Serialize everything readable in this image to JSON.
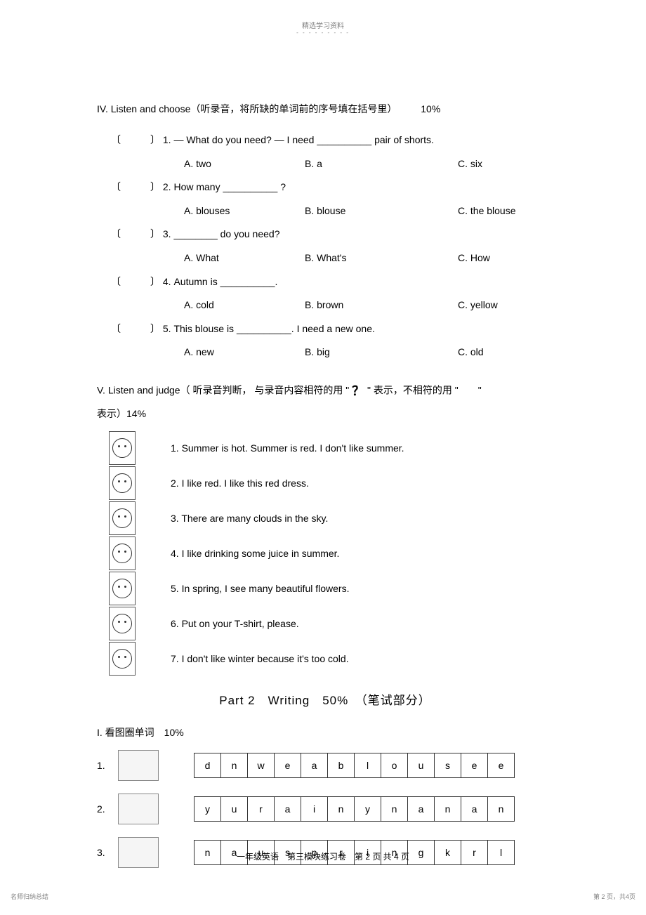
{
  "header": {
    "top_label": "精选学习资料",
    "top_dots": "- - - - - - - - -"
  },
  "section_iv": {
    "title_prefix": "IV. Listen and choose（听录音，将所缺的单词前的序号填在括号里）",
    "percent": "10%",
    "questions": [
      {
        "bracket": "〔　　　〕",
        "text": "1. — What do you need? —   I need __________ pair of shorts.",
        "a": "A. two",
        "b": "B. a",
        "c": "C. six"
      },
      {
        "bracket": "〔　　　〕",
        "text": "2. How many __________ ?",
        "a": "A. blouses",
        "b": "B. blouse",
        "c": "C. the blouse"
      },
      {
        "bracket": "〔　　　〕",
        "text": "3. ________ do you need?",
        "a": "A. What",
        "b": "B. What's",
        "c": "C. How"
      },
      {
        "bracket": "〔　　　〕",
        "text": "4. Autumn is __________.",
        "a": "A. cold",
        "b": "B. brown",
        "c": "C. yellow"
      },
      {
        "bracket": "〔　　　〕",
        "text": "5. This blouse is __________. I need a new one.",
        "a": "A. new",
        "b": "B. big",
        "c": "C. old"
      }
    ]
  },
  "section_v": {
    "title_line1": "V. Listen and judge（ 听录音判断， 与录音内容相符的用 \"",
    "title_qmark": "？",
    "title_line1b": "\" 表示，不相符的用 \"　　\"",
    "title_line2": "表示）14%",
    "items": [
      "1. Summer is hot. Summer is red. I don't like summer.",
      "2. I like red. I like this red dress.",
      "3. There are many clouds in the sky.",
      "4. I like drinking some juice in summer.",
      "5. In spring, I see many beautiful flowers.",
      "6. Put on your T-shirt, please.",
      "7. I don't like winter because it's too cold."
    ]
  },
  "part2": {
    "title": "Part 2　Writing　50%　（笔试部分）"
  },
  "section_i": {
    "title": "I.  看图圈单词　10%",
    "rows": [
      {
        "num": "1.",
        "letters": [
          "d",
          "n",
          "w",
          "e",
          "a",
          "b",
          "l",
          "o",
          "u",
          "s",
          "e",
          "e"
        ]
      },
      {
        "num": "2.",
        "letters": [
          "y",
          "u",
          "r",
          "a",
          "i",
          "n",
          "y",
          "n",
          "a",
          "n",
          "a",
          "n"
        ]
      },
      {
        "num": "3.",
        "letters": [
          "n",
          "a",
          "u",
          "s",
          "p",
          "r",
          "i",
          "n",
          "g",
          "k",
          "r",
          "l"
        ]
      }
    ]
  },
  "footer": {
    "text": "一年级英语　第三模块练习卷　第 2 页 共 4 页",
    "bottom_left": "名师归纳总结",
    "bottom_right": "第 2 页，共4页"
  }
}
